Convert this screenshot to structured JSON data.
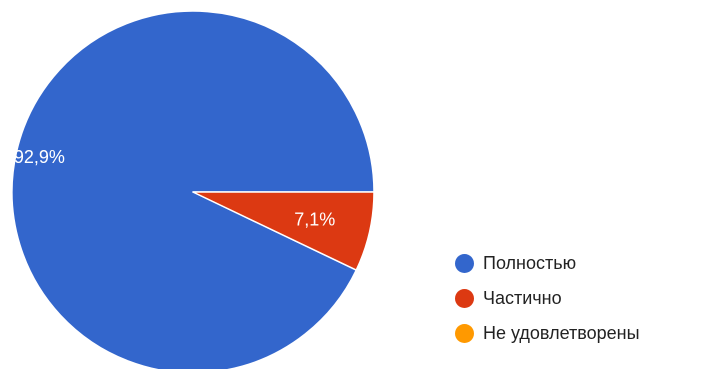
{
  "chart_data": {
    "type": "pie",
    "categories": [
      "Полностью",
      "Частично",
      "Не удовлетворены"
    ],
    "values": [
      92.9,
      7.1,
      0
    ],
    "data_labels": [
      "92,9%",
      "7,1%",
      ""
    ],
    "colors": [
      "#3366cc",
      "#dc3912",
      "#ff9900"
    ],
    "legend_position": "right-bottom"
  }
}
